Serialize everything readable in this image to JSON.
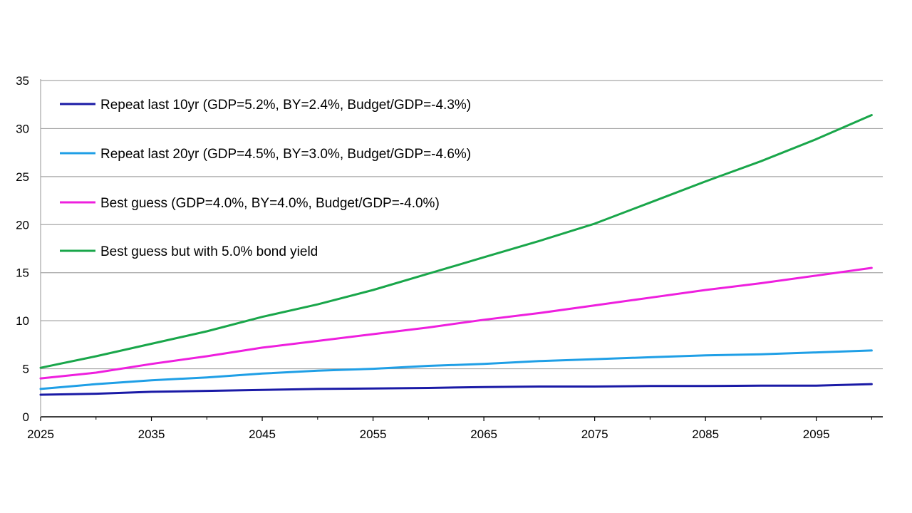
{
  "chart_data": {
    "type": "line",
    "title": "",
    "xlabel": "",
    "ylabel": "",
    "xlim": [
      2025,
      2101
    ],
    "ylim": [
      0,
      35
    ],
    "x_ticks": [
      2025,
      2035,
      2045,
      2055,
      2065,
      2075,
      2085,
      2095
    ],
    "y_ticks": [
      0,
      5,
      10,
      15,
      20,
      25,
      30,
      35
    ],
    "grid": "horizontal",
    "legend_position": "top-left",
    "x": [
      2025,
      2030,
      2035,
      2040,
      2045,
      2050,
      2055,
      2060,
      2065,
      2070,
      2075,
      2080,
      2085,
      2090,
      2095,
      2100
    ],
    "series": [
      {
        "name": "Repeat last 10yr (GDP=5.2%, BY=2.4%, Budget/GDP=-4.3%)",
        "color": "#1a1aa6",
        "values": [
          2.3,
          2.4,
          2.6,
          2.7,
          2.8,
          2.9,
          2.95,
          3.0,
          3.1,
          3.15,
          3.15,
          3.2,
          3.2,
          3.25,
          3.25,
          3.4
        ]
      },
      {
        "name": "Repeat last 20yr (GDP=4.5%, BY=3.0%, Budget/GDP=-4.6%)",
        "color": "#1f9fe6",
        "values": [
          2.9,
          3.4,
          3.8,
          4.1,
          4.5,
          4.8,
          5.0,
          5.3,
          5.5,
          5.8,
          6.0,
          6.2,
          6.4,
          6.5,
          6.7,
          6.9
        ]
      },
      {
        "name": "Best guess (GDP=4.0%, BY=4.0%, Budget/GDP=-4.0%)",
        "color": "#ee1fde",
        "values": [
          4.0,
          4.6,
          5.5,
          6.3,
          7.2,
          7.9,
          8.6,
          9.3,
          10.1,
          10.8,
          11.6,
          12.4,
          13.2,
          13.9,
          14.7,
          15.5
        ]
      },
      {
        "name": "Best guess but with 5.0% bond yield",
        "color": "#19a64a",
        "values": [
          5.1,
          6.3,
          7.6,
          8.9,
          10.4,
          11.7,
          13.2,
          14.9,
          16.6,
          18.3,
          20.1,
          22.3,
          24.5,
          26.6,
          28.9,
          31.4
        ]
      }
    ]
  }
}
